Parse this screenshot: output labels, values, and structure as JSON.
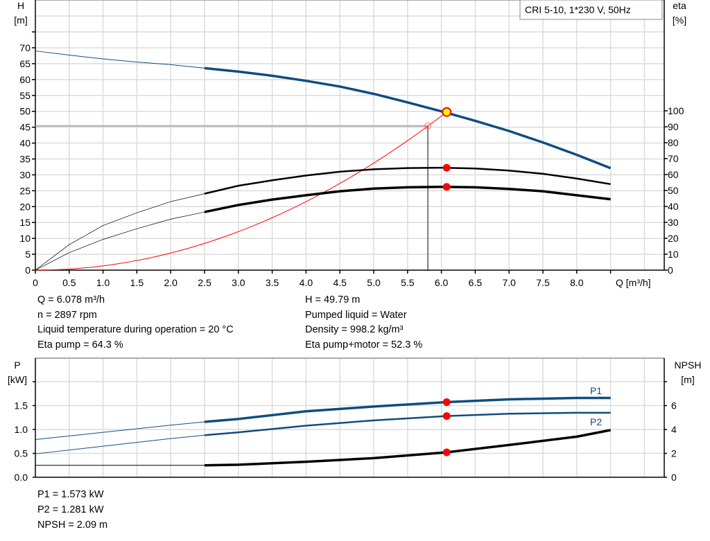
{
  "chart_data": [
    {
      "type": "line",
      "title": "CRI 5-10, 1*230 V, 50Hz",
      "xlabel": "Q [m³/h]",
      "ylabel": [
        "H",
        "[m]"
      ],
      "y2label": [
        "eta",
        "[%]"
      ],
      "xlim": [
        0,
        9.3
      ],
      "ylim": [
        0,
        85
      ],
      "y2lim": [
        0,
        100
      ],
      "x_ticks": [
        "0",
        "0.5",
        "1.0",
        "1.5",
        "2.0",
        "2.5",
        "3.0",
        "3.5",
        "4.0",
        "4.5",
        "5.0",
        "5.5",
        "6.0",
        "6.5",
        "7.0",
        "7.5",
        "8.0"
      ],
      "y_ticks": [
        "0",
        "5",
        "10",
        "15",
        "20",
        "25",
        "30",
        "35",
        "40",
        "45",
        "50",
        "55",
        "60",
        "65",
        "70"
      ],
      "y2_ticks": [
        "0",
        "10",
        "20",
        "30",
        "40",
        "50",
        "60",
        "70",
        "80",
        "90",
        "100"
      ],
      "grid": true,
      "x": [
        0,
        0.5,
        1.0,
        1.5,
        2.0,
        2.5,
        3.0,
        3.5,
        4.0,
        4.5,
        5.0,
        5.5,
        6.0,
        6.5,
        7.0,
        7.5,
        8.0,
        8.5
      ],
      "series": [
        {
          "axis": "H",
          "color": "#0f4c81",
          "values": [
            69,
            67.7,
            66.5,
            65.5,
            64.7,
            63.6,
            62.5,
            61.2,
            59.6,
            57.8,
            55.5,
            52.8,
            50.0,
            47.0,
            43.8,
            40.2,
            36.3,
            32.1
          ]
        },
        {
          "axis": "eta",
          "color": "#000000",
          "values": [
            0,
            16,
            28,
            36,
            43,
            48,
            53,
            56.4,
            59.4,
            61.8,
            63.3,
            64.1,
            64.3,
            63.8,
            62.5,
            60.5,
            57.5,
            54
          ]
        },
        {
          "axis": "eta",
          "color": "#000000",
          "values": [
            0,
            11,
            19.3,
            26,
            32,
            36.5,
            40.9,
            44.3,
            47,
            49.5,
            51.2,
            52,
            52.3,
            52,
            51,
            49.5,
            47,
            44.5
          ]
        }
      ],
      "system_curve": {
        "color": "#ff0000",
        "q": 6.078,
        "h": 49.79
      },
      "reference_point": {
        "q": 5.8,
        "h": 45.4
      },
      "duty_point": {
        "q": 6.078,
        "h": 49.79,
        "eta_pump": 64.3,
        "eta_total": 52.3
      }
    },
    {
      "type": "line",
      "ylabel": [
        "P",
        "[kW]"
      ],
      "y2label": [
        "NPSH",
        "[m]"
      ],
      "ylim": [
        0,
        2.4
      ],
      "y2lim": [
        0,
        9.6
      ],
      "y_ticks": [
        "0.0",
        "0.5",
        "1.0",
        "1.5"
      ],
      "y2_ticks": [
        "0",
        "2",
        "4",
        "6"
      ],
      "grid": true,
      "x": [
        0,
        1,
        2,
        2.5,
        3,
        4,
        5,
        6.078,
        7,
        8,
        8.5
      ],
      "series": [
        {
          "name": "P1",
          "axis": "P",
          "color": "#0f4c81",
          "values": [
            0.79,
            0.94,
            1.09,
            1.16,
            1.22,
            1.38,
            1.48,
            1.573,
            1.63,
            1.66,
            1.66
          ]
        },
        {
          "name": "P2",
          "axis": "P",
          "color": "#0f4c81",
          "values": [
            0.49,
            0.65,
            0.81,
            0.88,
            0.94,
            1.08,
            1.19,
            1.281,
            1.33,
            1.35,
            1.35
          ]
        },
        {
          "axis": "NPSH",
          "color": "#000000",
          "values": [
            1.0,
            1.0,
            1.0,
            1.0,
            1.05,
            1.3,
            1.6,
            2.09,
            2.7,
            3.4,
            3.95
          ]
        }
      ],
      "duty_q": 6.078
    }
  ],
  "info_top": {
    "left": [
      "Q = 6.078 m³/h",
      "n = 2897 rpm",
      "Liquid temperature during operation = 20 °C",
      "Eta pump = 64.3 %"
    ],
    "right": [
      "H = 49.79 m",
      "Pumped liquid = Water",
      "Density = 998.2 kg/m³",
      "Eta pump+motor = 52.3 %"
    ]
  },
  "info_bottom": [
    "P1 = 1.573 kW",
    "P2 = 1.281 kW",
    "NPSH = 2.09 m"
  ]
}
